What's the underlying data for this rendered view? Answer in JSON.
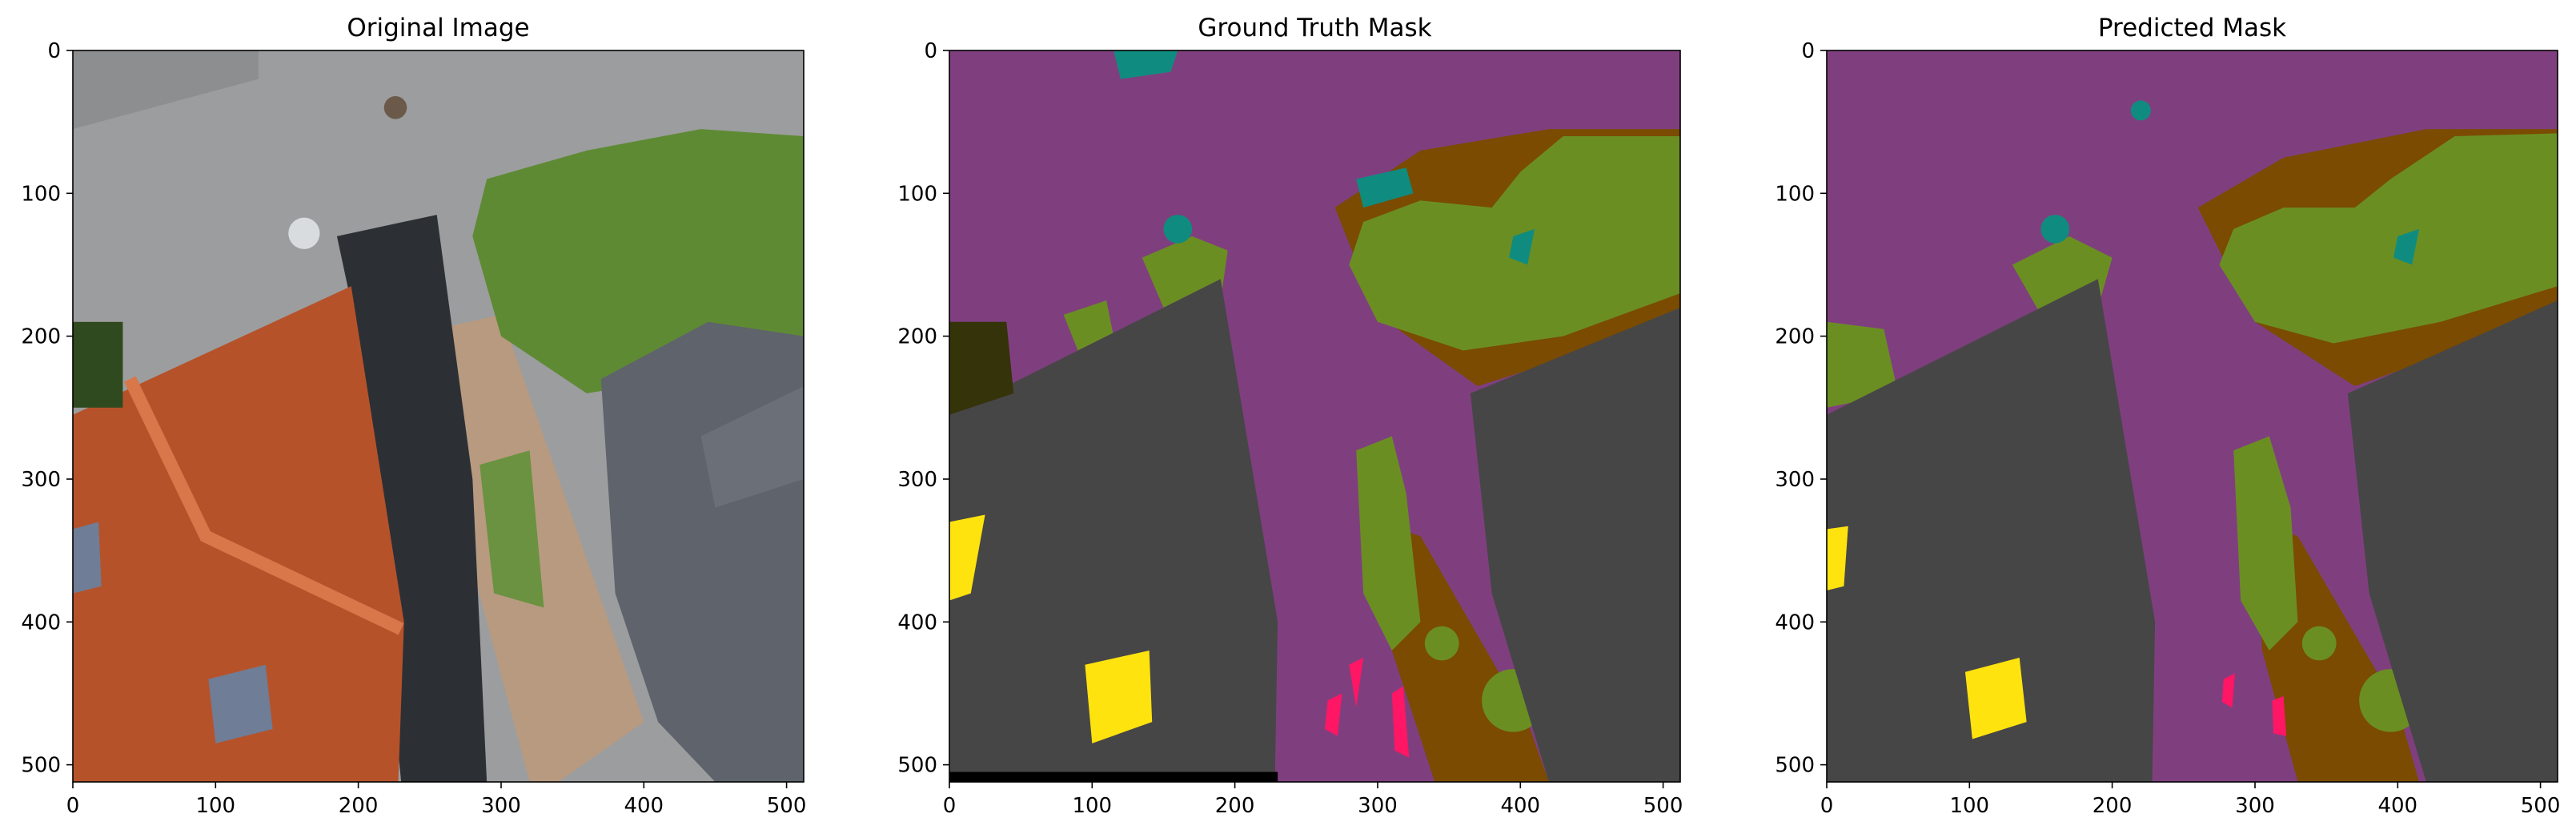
{
  "chart_data": [
    {
      "type": "image",
      "title": "Original Image",
      "xlim": [
        0,
        512
      ],
      "ylim": [
        512,
        0
      ],
      "xticks": [
        0,
        100,
        200,
        300,
        400,
        500
      ],
      "yticks": [
        0,
        100,
        200,
        300,
        400,
        500
      ],
      "x_tick_labels": [
        "0",
        "100",
        "200",
        "300",
        "400",
        "500"
      ],
      "y_tick_labels": [
        "0",
        "100",
        "200",
        "300",
        "400",
        "500"
      ]
    },
    {
      "type": "image",
      "title": "Ground Truth Mask",
      "xlim": [
        0,
        512
      ],
      "ylim": [
        512,
        0
      ],
      "xticks": [
        0,
        100,
        200,
        300,
        400,
        500
      ],
      "yticks": [
        0,
        100,
        200,
        300,
        400,
        500
      ],
      "x_tick_labels": [
        "0",
        "100",
        "200",
        "300",
        "400",
        "500"
      ],
      "y_tick_labels": [
        "0",
        "100",
        "200",
        "300",
        "400",
        "500"
      ]
    },
    {
      "type": "image",
      "title": "Predicted Mask",
      "xlim": [
        0,
        512
      ],
      "ylim": [
        512,
        0
      ],
      "xticks": [
        0,
        100,
        200,
        300,
        400,
        500
      ],
      "yticks": [
        0,
        100,
        200,
        300,
        400,
        500
      ],
      "x_tick_labels": [
        "0",
        "100",
        "200",
        "300",
        "400",
        "500"
      ],
      "y_tick_labels": [
        "0",
        "100",
        "200",
        "300",
        "400",
        "500"
      ]
    }
  ],
  "colors": {
    "road": "#7f3f7f",
    "roof_gray": "#464646",
    "vegetation": "#6b8e23",
    "soil": "#7a4b00",
    "yellow": "#ffe30f",
    "teal": "#0f8c7f",
    "pink": "#ff1664",
    "dark_olive": "#35330a",
    "photo_asphalt": "#9a9b9c",
    "photo_roof_orange": "#b6522a",
    "photo_roof_slate": "#5f636b",
    "photo_shadow": "#2a2e33",
    "photo_paving": "#b89a80",
    "photo_green": "#5e8a34"
  }
}
